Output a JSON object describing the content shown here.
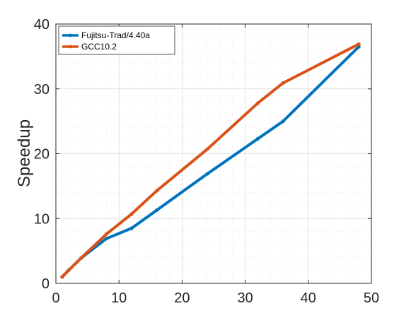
{
  "chart_data": {
    "type": "line",
    "title": "",
    "xlabel": "",
    "ylabel": "Speedup",
    "xlim": [
      0,
      50
    ],
    "ylim": [
      0,
      40
    ],
    "xticks": [
      0,
      10,
      20,
      30,
      40,
      50
    ],
    "yticks": [
      0,
      10,
      20,
      30,
      40
    ],
    "grid": true,
    "minor_grid": true,
    "legend_position": "top-left",
    "series": [
      {
        "name": "Fujitsu-Trad/4.40a",
        "color": "#0072BD",
        "x": [
          1,
          2,
          4,
          8,
          12,
          16,
          24,
          32,
          36,
          48
        ],
        "y": [
          1.0,
          2.0,
          3.9,
          6.9,
          8.5,
          11.3,
          16.9,
          22.3,
          25.0,
          36.5
        ]
      },
      {
        "name": "GCC10.2",
        "color": "#D95319",
        "x": [
          1,
          2,
          4,
          8,
          12,
          16,
          24,
          32,
          36,
          48
        ],
        "y": [
          1.0,
          2.0,
          3.9,
          7.6,
          10.7,
          14.3,
          20.7,
          27.8,
          30.9,
          36.9
        ]
      }
    ]
  }
}
